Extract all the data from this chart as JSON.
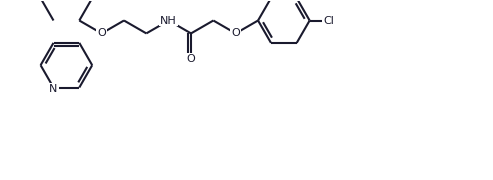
{
  "bg_color": "#ffffff",
  "line_color": "#1a1a2e",
  "line_width": 1.5,
  "figsize": [
    4.93,
    1.8
  ],
  "dpi": 100,
  "xlim": [
    0,
    9.86
  ],
  "ylim": [
    0,
    3.6
  ]
}
